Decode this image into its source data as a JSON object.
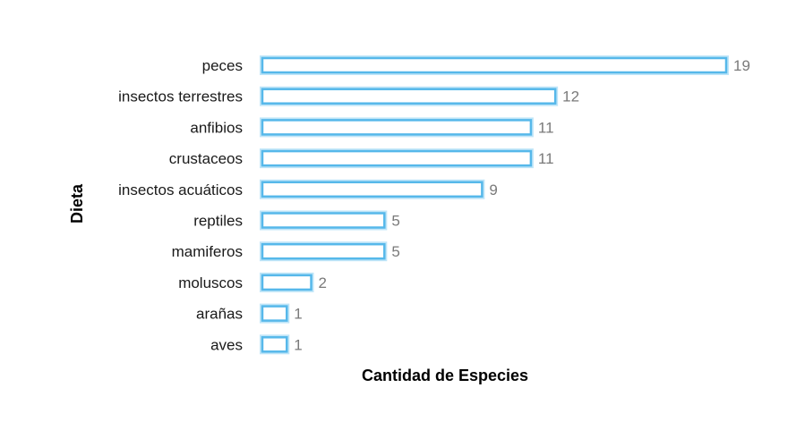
{
  "chart_data": {
    "type": "bar",
    "orientation": "horizontal",
    "categories": [
      "peces",
      "insectos terrestres",
      "anfibios",
      "crustaceos",
      "insectos acuáticos",
      "reptiles",
      "mamiferos",
      "moluscos",
      "arañas",
      "aves"
    ],
    "values": [
      19,
      12,
      11,
      11,
      9,
      5,
      5,
      2,
      1,
      1
    ],
    "xlabel": "Cantidad de Especies",
    "ylabel": "Dieta",
    "xlim": [
      0,
      19
    ],
    "grid": false,
    "legend": "none",
    "bar_stroke_color": "#56b8ea",
    "bar_fill_color": "#ffffff"
  }
}
